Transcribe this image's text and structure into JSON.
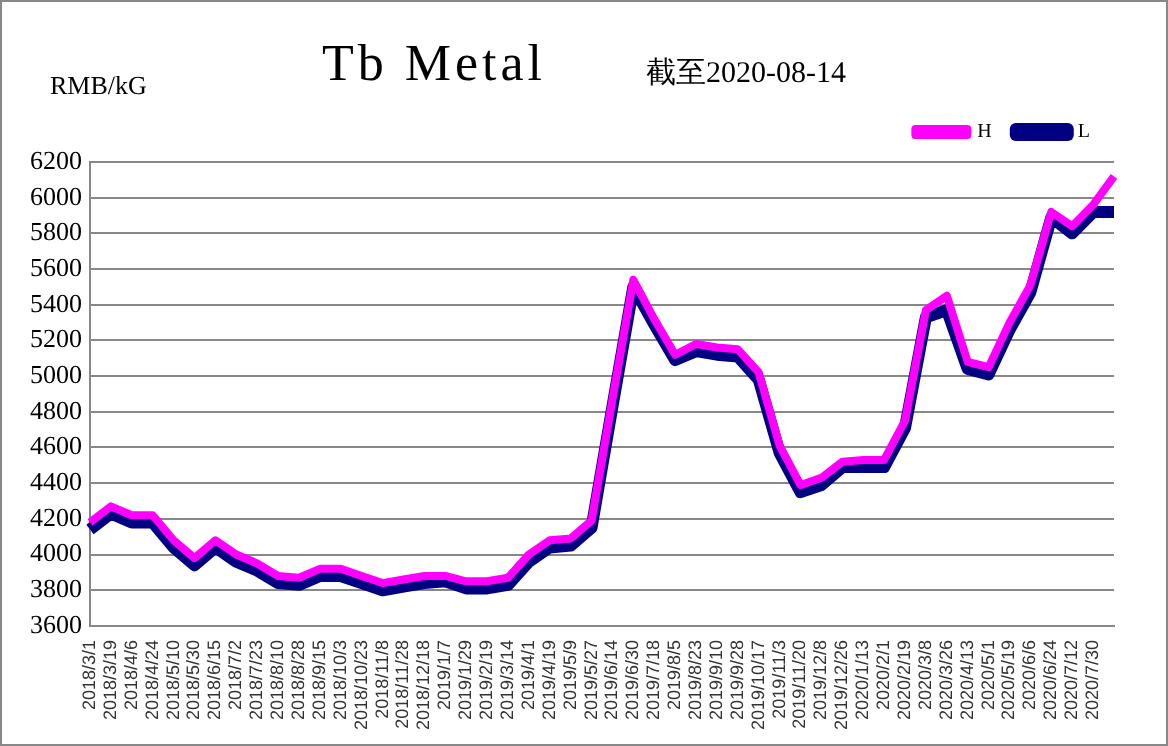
{
  "chart_data": {
    "type": "line",
    "title": "Tb Metal",
    "subtitle": "截至2020-08-14",
    "ylabel": "RMB/kG",
    "categories": [
      "2018/3/1",
      "2018/3/19",
      "2018/4/6",
      "2018/4/24",
      "2018/5/10",
      "2018/5/30",
      "2018/6/15",
      "2018/7/2",
      "2018/7/23",
      "2018/8/10",
      "2018/8/28",
      "2018/9/15",
      "2018/10/3",
      "2018/10/23",
      "2018/11/8",
      "2018/11/28",
      "2018/12/18",
      "2019/1/7",
      "2019/1/29",
      "2019/2/19",
      "2019/3/14",
      "2019/4/1",
      "2019/4/19",
      "2019/5/9",
      "2019/5/27",
      "2019/6/14",
      "2019/6/30",
      "2019/7/18",
      "2019/8/5",
      "2019/8/23",
      "2019/9/10",
      "2019/9/28",
      "2019/10/17",
      "2019/11/3",
      "2019/11/20",
      "2019/12/8",
      "2019/12/26",
      "2020/1/13",
      "2020/2/1",
      "2020/2/19",
      "2020/3/8",
      "2020/3/26",
      "2020/4/13",
      "2020/5/1",
      "2020/5/19",
      "2020/6/6",
      "2020/6/24",
      "2020/7/12",
      "2020/7/30",
      null
    ],
    "series": [
      {
        "name": "L",
        "color": "#000080",
        "values": [
          4140,
          4230,
          4180,
          4180,
          4040,
          3940,
          4040,
          3960,
          3910,
          3840,
          3830,
          3880,
          3880,
          3840,
          3800,
          3820,
          3840,
          3850,
          3810,
          3810,
          3830,
          3960,
          4040,
          4050,
          4150,
          4830,
          5500,
          5290,
          5090,
          5140,
          5120,
          5110,
          4980,
          4570,
          4350,
          4390,
          4490,
          4490,
          4490,
          4710,
          5330,
          5370,
          5040,
          5010,
          5260,
          5470,
          5890,
          5800,
          5920,
          5920
        ]
      },
      {
        "name": "H",
        "color": "#ff00ff",
        "values": [
          4180,
          4270,
          4220,
          4220,
          4080,
          3980,
          4080,
          4000,
          3950,
          3880,
          3870,
          3920,
          3920,
          3880,
          3840,
          3860,
          3880,
          3880,
          3850,
          3850,
          3870,
          4000,
          4080,
          4090,
          4190,
          4870,
          5540,
          5320,
          5120,
          5180,
          5160,
          5150,
          5020,
          4610,
          4390,
          4430,
          4520,
          4530,
          4530,
          4750,
          5370,
          5450,
          5080,
          5050,
          5300,
          5510,
          5920,
          5840,
          5960,
          6120
        ]
      }
    ],
    "ylim": [
      3600,
      6200
    ],
    "yticks": [
      3600,
      3800,
      4000,
      4200,
      4400,
      4600,
      4800,
      5000,
      5200,
      5400,
      5600,
      5800,
      6000,
      6200
    ],
    "grid": "y",
    "legend": "top right",
    "marker": "none",
    "line_style": "solid"
  }
}
